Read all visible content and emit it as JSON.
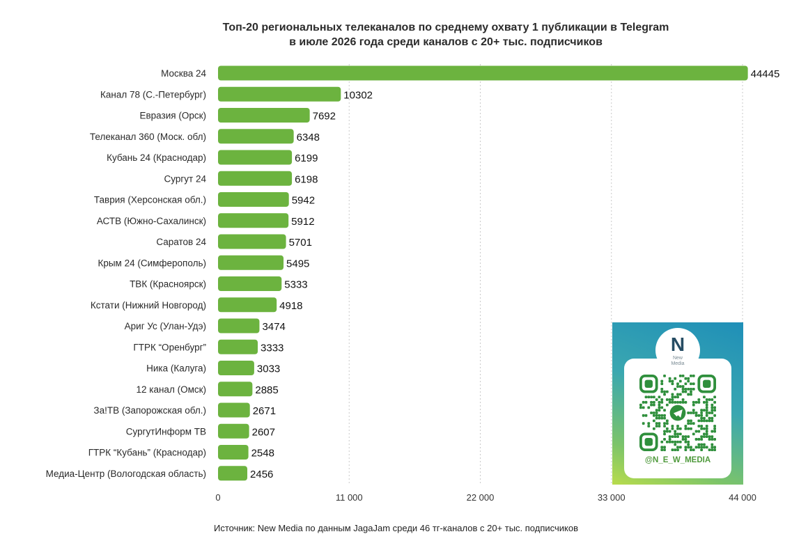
{
  "chart_data": {
    "type": "bar",
    "orientation": "horizontal",
    "title": "Топ-20 региональных телеканалов по среднему охвату 1 публикации в Telegram",
    "subtitle": "в июле 2026 года среди каналов с 20+ тыс. подписчиков",
    "categories": [
      "Москва 24",
      "Канал 78 (С.-Петербург)",
      "Евразия (Орск)",
      "Телеканал 360 (Моск. обл)",
      "Кубань 24 (Краснодар)",
      "Сургут 24",
      "Таврия (Херсонская обл.)",
      "АСТВ (Южно-Сахалинск)",
      "Саратов 24",
      "Крым 24 (Симферополь)",
      "ТВК (Красноярск)",
      "Кстати (Нижний Новгород)",
      "Ариг Ус (Улан-Удэ)",
      "ГТРК “Оренбург”",
      "Ника (Калуга)",
      "12 канал (Омск)",
      "За!ТВ (Запорожская обл.)",
      "СургутИнформ ТВ",
      "ГТРК “Кубань” (Краснодар)",
      "Медиа-Центр (Вологодская область)"
    ],
    "values": [
      44445,
      10302,
      7692,
      6348,
      6199,
      6198,
      5942,
      5912,
      5701,
      5495,
      5333,
      4918,
      3474,
      3333,
      3033,
      2885,
      2671,
      2607,
      2548,
      2456
    ],
    "xlim": [
      0,
      44000
    ],
    "xticks": [
      0,
      11000,
      22000,
      33000,
      44000
    ],
    "xtick_labels": [
      "0",
      "11 000",
      "22 000",
      "33 000",
      "44 000"
    ],
    "grid": "vertical dashed",
    "bar_color": "#6cb33f",
    "source": "Источник: New Media по данным JagaJam среди 46 тг-каналов с 20+ тыс. подписчиков"
  },
  "promo": {
    "logo_letter": "N",
    "logo_text_line1": "New",
    "logo_text_line2": "Media",
    "handle": "@N_E_W_MEDIA",
    "qr_icon": "telegram-icon"
  }
}
